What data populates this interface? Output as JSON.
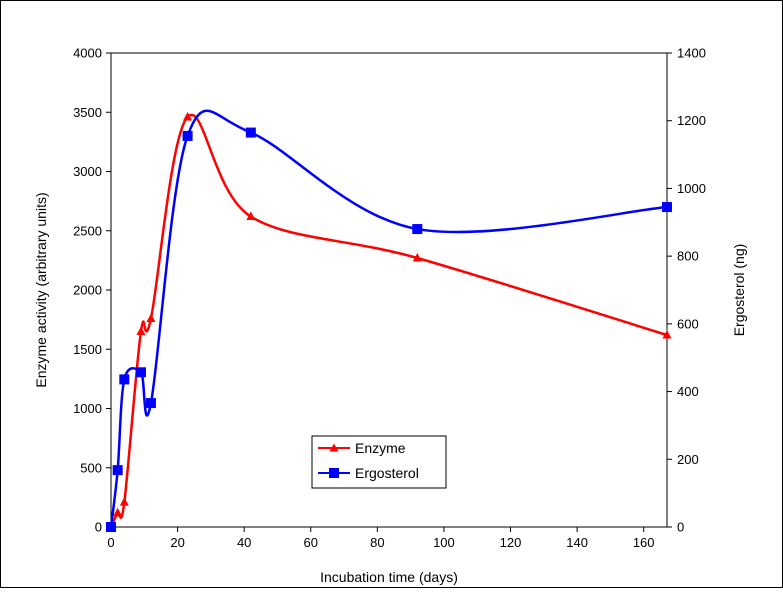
{
  "chart_data": {
    "type": "line",
    "title": "",
    "xlabel": "Incubation time (days)",
    "ylabel": "Enzyme activity (arbitrary units)",
    "y2label": "Ergosterol (ng)",
    "xlim": [
      0,
      167
    ],
    "ylim": [
      0,
      4000
    ],
    "y2lim": [
      0,
      1400
    ],
    "x_ticks": [
      "0",
      "20",
      "40",
      "60",
      "80",
      "100",
      "120",
      "140",
      "160"
    ],
    "y_ticks": [
      "0",
      "500",
      "1000",
      "1500",
      "2000",
      "2500",
      "3000",
      "3500",
      "4000"
    ],
    "y2_ticks": [
      "0",
      "200",
      "400",
      "600",
      "800",
      "1000",
      "1200",
      "1400"
    ],
    "grid": false,
    "legend_position": "bottom-center",
    "series": [
      {
        "name": "Enzyme",
        "axis": "left",
        "color": "#ff0000",
        "marker": "triangle",
        "x": [
          0,
          2,
          4,
          9,
          12,
          23,
          42,
          92,
          167
        ],
        "y": [
          0,
          120,
          210,
          1650,
          1760,
          3460,
          2620,
          2270,
          1620
        ]
      },
      {
        "name": "Ergosterol",
        "axis": "right",
        "color": "#0000ff",
        "marker": "square",
        "x": [
          0,
          2,
          4,
          9,
          12,
          23,
          42,
          92,
          167
        ],
        "y": [
          0,
          168,
          436,
          457,
          366,
          1155,
          1165,
          880,
          945
        ]
      }
    ]
  }
}
